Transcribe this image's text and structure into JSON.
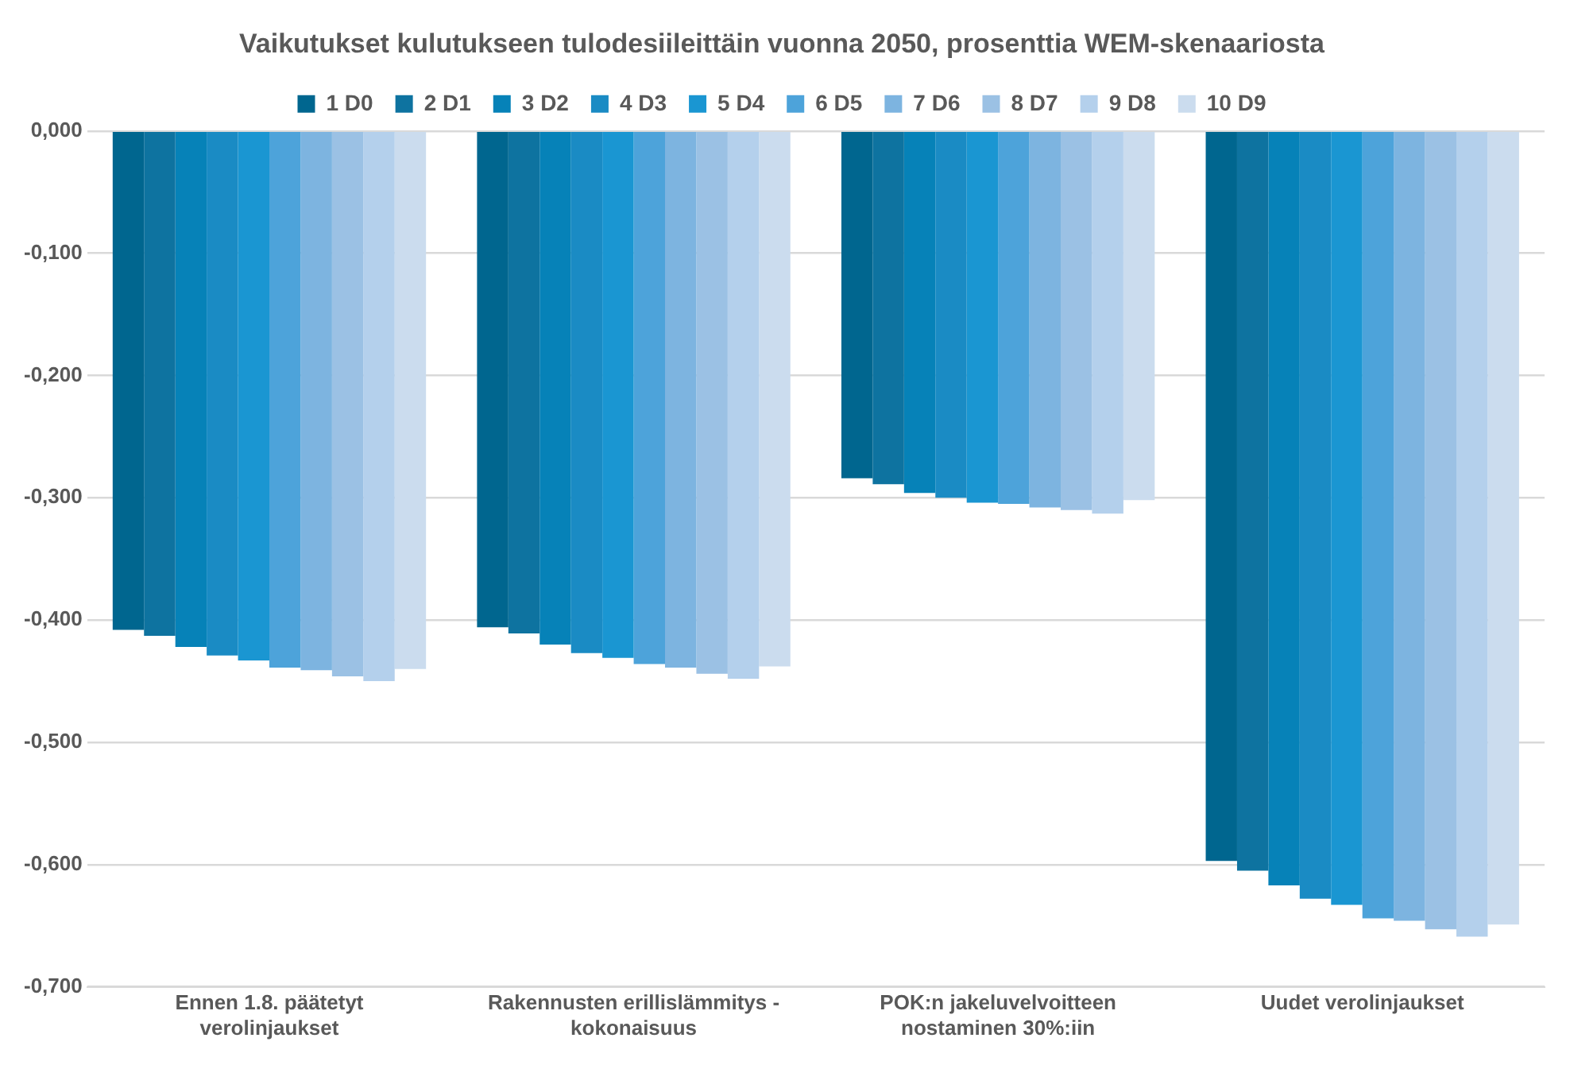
{
  "chart_data": {
    "type": "bar",
    "title": "Vaikutukset kulutukseen tulodesiileittäin vuonna 2050, prosenttia WEM-skenaariosta",
    "categories": [
      "Ennen 1.8. päätetyt verolinjaukset",
      "Rakennusten erillislämmitys - kokonaisuus",
      "POK:n jakeluvelvoitteen nostaminen 30%:iin",
      "Uudet verolinjaukset"
    ],
    "series": [
      {
        "name": "1 D0",
        "color": "#00668f",
        "values": [
          -0.408,
          -0.406,
          -0.284,
          -0.597
        ]
      },
      {
        "name": "2 D1",
        "color": "#0e73a0",
        "values": [
          -0.413,
          -0.411,
          -0.289,
          -0.605
        ]
      },
      {
        "name": "3 D2",
        "color": "#0682b8",
        "values": [
          -0.422,
          -0.42,
          -0.296,
          -0.617
        ]
      },
      {
        "name": "4 D3",
        "color": "#1a8bc4",
        "values": [
          -0.429,
          -0.427,
          -0.3,
          -0.628
        ]
      },
      {
        "name": "5 D4",
        "color": "#1a96d2",
        "values": [
          -0.433,
          -0.431,
          -0.304,
          -0.633
        ]
      },
      {
        "name": "6 D5",
        "color": "#4da3da",
        "values": [
          -0.439,
          -0.436,
          -0.305,
          -0.644
        ]
      },
      {
        "name": "7 D6",
        "color": "#7db4e0",
        "values": [
          -0.441,
          -0.439,
          -0.308,
          -0.646
        ]
      },
      {
        "name": "8 D7",
        "color": "#9bc1e4",
        "values": [
          -0.446,
          -0.444,
          -0.31,
          -0.653
        ]
      },
      {
        "name": "9 D8",
        "color": "#b4d0ec",
        "values": [
          -0.45,
          -0.448,
          -0.313,
          -0.659
        ]
      },
      {
        "name": "10 D9",
        "color": "#cbdcee",
        "values": [
          -0.44,
          -0.438,
          -0.302,
          -0.649
        ]
      }
    ],
    "ylim": [
      -0.7,
      0
    ],
    "yticks": [
      {
        "value": 0,
        "label": "0,000"
      },
      {
        "value": -0.1,
        "label": "-0,100"
      },
      {
        "value": -0.2,
        "label": "-0,200"
      },
      {
        "value": -0.3,
        "label": "-0,300"
      },
      {
        "value": -0.4,
        "label": "-0,400"
      },
      {
        "value": -0.5,
        "label": "-0,500"
      },
      {
        "value": -0.6,
        "label": "-0,600"
      },
      {
        "value": -0.7,
        "label": "-0,700"
      }
    ],
    "grid": "y",
    "legend": "top"
  }
}
